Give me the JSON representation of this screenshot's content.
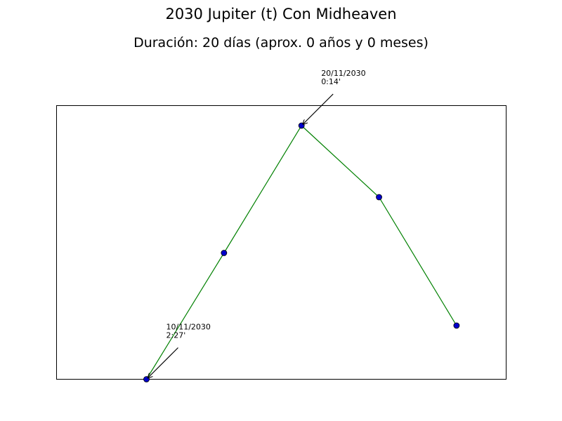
{
  "chart_data": {
    "type": "line",
    "title": "2030 Jupiter (t) Con Midheaven",
    "subtitle": "Duración: 20 días (aprox. 0 años y 0 meses)",
    "xlabel": "",
    "ylabel": "",
    "xlim": [
      0,
      5.8
    ],
    "ylim": [
      0,
      2.6
    ],
    "grid": false,
    "line_color": "#008000",
    "marker_color": "#0000cc",
    "x": [
      1.16,
      2.16,
      3.16,
      4.16,
      5.16
    ],
    "values": [
      0.0,
      1.2,
      2.41,
      1.73,
      0.51
    ],
    "annotations": [
      {
        "point_index": 0,
        "line1": "10/11/2030",
        "line2": "2:27'"
      },
      {
        "point_index": 2,
        "line1": "20/11/2030",
        "line2": "0:14'"
      }
    ]
  }
}
